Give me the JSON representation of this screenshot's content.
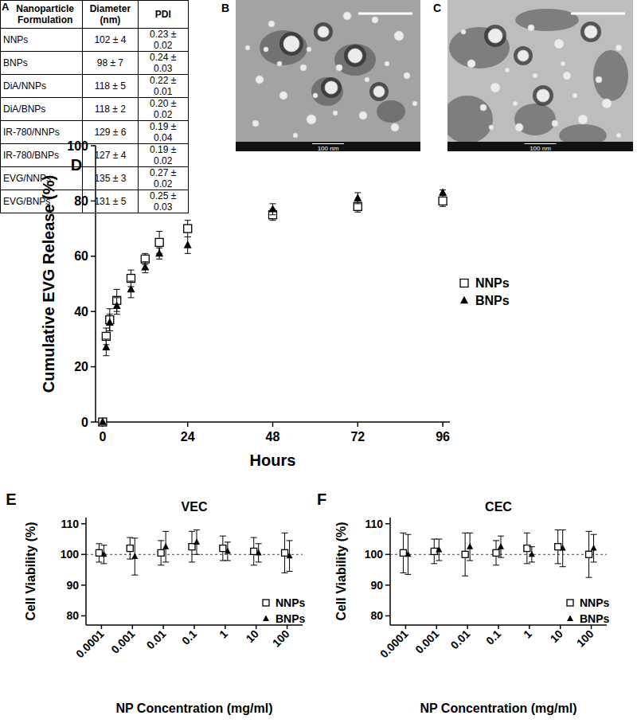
{
  "table": {
    "panel_label": "A",
    "header": [
      "Nanoparticle Formulation",
      "Diameter (nm)",
      "PDI"
    ],
    "rows": [
      [
        "NNPs",
        "102 ± 4",
        "0.23 ± 0.02"
      ],
      [
        "BNPs",
        "98 ± 7",
        "0.24 ± 0.03"
      ],
      [
        "DiA/NNPs",
        "118 ± 5",
        "0.22 ± 0.01"
      ],
      [
        "DiA/BNPs",
        "118 ± 2",
        "0.20 ± 0.02"
      ],
      [
        "IR-780/NNPs",
        "129 ± 6",
        "0.19 ± 0.04"
      ],
      [
        "IR-780/BNPs",
        "127 ± 4",
        "0.19 ± 0.02"
      ],
      [
        "EVG/NNPs",
        "135 ± 3",
        "0.27 ± 0.02"
      ],
      [
        "EVG/BNPs",
        "131 ± 5",
        "0.25 ± 0.03"
      ]
    ]
  },
  "images": [
    {
      "panel_label": "B",
      "scale_label": "100 nm"
    },
    {
      "panel_label": "C",
      "scale_label": "100 nm"
    }
  ],
  "chart_data": [
    {
      "panel_label": "D",
      "type": "scatter",
      "x_label": "Hours",
      "y_label": "Cumulative EVG Release (%)",
      "x": [
        0,
        1,
        2,
        4,
        8,
        12,
        16,
        24,
        48,
        72,
        96
      ],
      "xlim": [
        -2,
        98
      ],
      "xticks": [
        0,
        24,
        48,
        72,
        96
      ],
      "ylim": [
        0,
        100
      ],
      "yticks": [
        0,
        20,
        40,
        60,
        80,
        100
      ],
      "legend": "right",
      "series": [
        {
          "name": "NNPs",
          "color": "#000000",
          "marker": "square-open",
          "values": [
            0,
            31,
            37,
            44,
            52,
            59,
            65,
            70,
            75,
            78,
            80
          ],
          "errors": [
            0,
            3,
            4,
            4,
            3,
            2,
            4,
            3,
            2,
            2,
            2
          ]
        },
        {
          "name": "BNPs",
          "color": "#000000",
          "marker": "triangle",
          "values": [
            0,
            27,
            36,
            42,
            48,
            56,
            61,
            64,
            77,
            81,
            83
          ],
          "errors": [
            0,
            3,
            3,
            3,
            3,
            2,
            2,
            3,
            2,
            2,
            1
          ]
        }
      ]
    },
    {
      "panel_label": "E",
      "type": "scatter",
      "title": "VEC",
      "x_label": "NP Concentration (mg/ml)",
      "y_label": "Cell Viability (%)",
      "categories": [
        "0.0001",
        "0.001",
        "0.01",
        "0.1",
        "1",
        "10",
        "100"
      ],
      "ylim": [
        77,
        112
      ],
      "yticks": [
        80,
        90,
        100,
        110
      ],
      "reference_line": 100,
      "legend": "lower right",
      "series": [
        {
          "name": "NNPs",
          "color": "#000000",
          "marker": "square-open",
          "values": [
            100.5,
            102,
            100.5,
            102.5,
            102,
            101,
            100.5
          ],
          "errors": [
            3,
            3.5,
            4,
            5,
            4,
            4.5,
            6.5
          ]
        },
        {
          "name": "BNPs",
          "color": "#000000",
          "marker": "triangle",
          "values": [
            100,
            99.3,
            102.5,
            104,
            101,
            100.5,
            99.5
          ],
          "errors": [
            3,
            6,
            5,
            4,
            3,
            3,
            5
          ]
        }
      ]
    },
    {
      "panel_label": "F",
      "type": "scatter",
      "title": "CEC",
      "x_label": "NP Concentration (mg/ml)",
      "y_label": "Cell Viability (%)",
      "categories": [
        "0.0001",
        "0.001",
        "0.01",
        "0.1",
        "1",
        "10",
        "100"
      ],
      "ylim": [
        77,
        112
      ],
      "yticks": [
        80,
        90,
        100,
        110
      ],
      "reference_line": 100,
      "legend": "lower right",
      "series": [
        {
          "name": "NNPs",
          "color": "#000000",
          "marker": "square-open",
          "values": [
            100.5,
            101,
            100,
            100.5,
            102,
            102.5,
            100
          ],
          "errors": [
            6.5,
            4,
            7,
            4,
            5,
            5.5,
            7.5
          ]
        },
        {
          "name": "BNPs",
          "color": "#000000",
          "marker": "triangle",
          "values": [
            100,
            101.5,
            102.5,
            102.5,
            100,
            102,
            102
          ],
          "errors": [
            6.5,
            3.5,
            4.5,
            3.5,
            2.5,
            6,
            4.5
          ]
        }
      ]
    }
  ]
}
